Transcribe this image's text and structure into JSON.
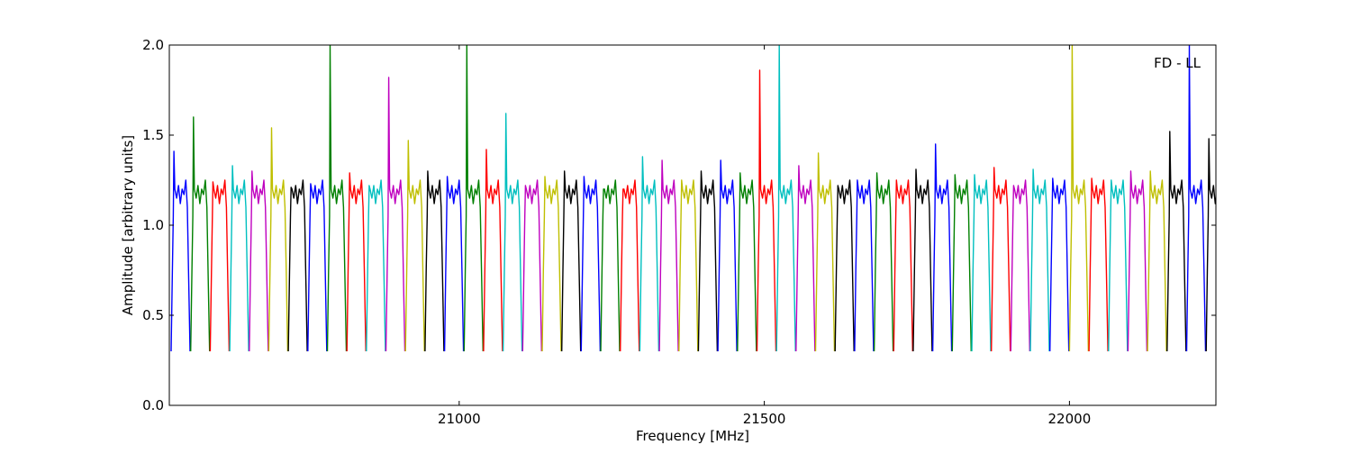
{
  "chart_data": {
    "type": "line",
    "annotation": "FD - LL",
    "xlabel": "Frequency [MHz]",
    "ylabel": "Amplitude [arbitrary units]",
    "xlim": [
      20525,
      22240
    ],
    "ylim": [
      0.0,
      2.0
    ],
    "x_ticks": [
      {
        "value": 21000,
        "label": "21000"
      },
      {
        "value": 21500,
        "label": "21500"
      },
      {
        "value": 22000,
        "label": "22000"
      }
    ],
    "y_ticks": [
      {
        "value": 0.0,
        "label": "0.0"
      },
      {
        "value": 0.5,
        "label": "0.5"
      },
      {
        "value": 1.0,
        "label": "1.0"
      },
      {
        "value": 1.5,
        "label": "1.5"
      },
      {
        "value": 2.0,
        "label": "2.0"
      }
    ],
    "grid": false,
    "legend": "none",
    "color_cycle": [
      "#0000ff",
      "#008000",
      "#ff0000",
      "#00bfbf",
      "#bf00bf",
      "#bfbf00",
      "#000000"
    ],
    "band_template": {
      "span_mhz": 32,
      "x_offsets": [
        0,
        2,
        3.5,
        6,
        9,
        12,
        15,
        18,
        21,
        24,
        26.5,
        28.5,
        31
      ],
      "y_values": [
        0.3,
        0.75,
        1.05,
        1.2,
        1.15,
        1.22,
        1.12,
        1.2,
        1.17,
        1.25,
        1.1,
        0.75,
        0.3
      ]
    },
    "series": [
      {
        "x_start": 20528,
        "color": "#0000ff",
        "peak": 1.41
      },
      {
        "x_start": 20560,
        "color": "#008000",
        "peak": 1.6
      },
      {
        "x_start": 20592,
        "color": "#ff0000",
        "peak": 1.24
      },
      {
        "x_start": 20624,
        "color": "#00bfbf",
        "peak": 1.33
      },
      {
        "x_start": 20656,
        "color": "#bf00bf",
        "peak": 1.3
      },
      {
        "x_start": 20688,
        "color": "#bfbf00",
        "peak": 1.54
      },
      {
        "x_start": 20720,
        "color": "#000000",
        "peak": 1.21
      },
      {
        "x_start": 20752,
        "color": "#0000ff",
        "peak": 1.23
      },
      {
        "x_start": 20784,
        "color": "#008000",
        "peak": 2.0
      },
      {
        "x_start": 20816,
        "color": "#ff0000",
        "peak": 1.29
      },
      {
        "x_start": 20848,
        "color": "#00bfbf",
        "peak": 1.22
      },
      {
        "x_start": 20880,
        "color": "#bf00bf",
        "peak": 1.82
      },
      {
        "x_start": 20912,
        "color": "#bfbf00",
        "peak": 1.47
      },
      {
        "x_start": 20944,
        "color": "#000000",
        "peak": 1.3
      },
      {
        "x_start": 20976,
        "color": "#0000ff",
        "peak": 1.27
      },
      {
        "x_start": 21008,
        "color": "#008000",
        "peak": 2.0
      },
      {
        "x_start": 21040,
        "color": "#ff0000",
        "peak": 1.42
      },
      {
        "x_start": 21072,
        "color": "#00bfbf",
        "peak": 1.62
      },
      {
        "x_start": 21104,
        "color": "#bf00bf",
        "peak": 1.22
      },
      {
        "x_start": 21136,
        "color": "#bfbf00",
        "peak": 1.27
      },
      {
        "x_start": 21168,
        "color": "#000000",
        "peak": 1.3
      },
      {
        "x_start": 21200,
        "color": "#0000ff",
        "peak": 1.27
      },
      {
        "x_start": 21232,
        "color": "#008000",
        "peak": 1.2
      },
      {
        "x_start": 21264,
        "color": "#ff0000",
        "peak": 1.2
      },
      {
        "x_start": 21296,
        "color": "#00bfbf",
        "peak": 1.38
      },
      {
        "x_start": 21328,
        "color": "#bf00bf",
        "peak": 1.36
      },
      {
        "x_start": 21360,
        "color": "#bfbf00",
        "peak": 1.25
      },
      {
        "x_start": 21392,
        "color": "#000000",
        "peak": 1.3
      },
      {
        "x_start": 21424,
        "color": "#0000ff",
        "peak": 1.36
      },
      {
        "x_start": 21456,
        "color": "#008000",
        "peak": 1.29
      },
      {
        "x_start": 21488,
        "color": "#ff0000",
        "peak": 1.86
      },
      {
        "x_start": 21520,
        "color": "#00bfbf",
        "peak": 2.0
      },
      {
        "x_start": 21552,
        "color": "#bf00bf",
        "peak": 1.33
      },
      {
        "x_start": 21584,
        "color": "#bfbf00",
        "peak": 1.4
      },
      {
        "x_start": 21616,
        "color": "#000000",
        "peak": 1.22
      },
      {
        "x_start": 21648,
        "color": "#0000ff",
        "peak": 1.25
      },
      {
        "x_start": 21680,
        "color": "#008000",
        "peak": 1.29
      },
      {
        "x_start": 21712,
        "color": "#ff0000",
        "peak": 1.25
      },
      {
        "x_start": 21744,
        "color": "#000000",
        "peak": 1.31
      },
      {
        "x_start": 21776,
        "color": "#0000ff",
        "peak": 1.45
      },
      {
        "x_start": 21808,
        "color": "#008000",
        "peak": 1.28
      },
      {
        "x_start": 21840,
        "color": "#00bfbf",
        "peak": 1.28
      },
      {
        "x_start": 21872,
        "color": "#ff0000",
        "peak": 1.32
      },
      {
        "x_start": 21904,
        "color": "#bf00bf",
        "peak": 1.22
      },
      {
        "x_start": 21936,
        "color": "#00bfbf",
        "peak": 1.31
      },
      {
        "x_start": 21968,
        "color": "#0000ff",
        "peak": 1.26
      },
      {
        "x_start": 22000,
        "color": "#bfbf00",
        "peak": 2.0
      },
      {
        "x_start": 22032,
        "color": "#ff0000",
        "peak": 1.26
      },
      {
        "x_start": 22064,
        "color": "#00bfbf",
        "peak": 1.25
      },
      {
        "x_start": 22096,
        "color": "#bf00bf",
        "peak": 1.3
      },
      {
        "x_start": 22128,
        "color": "#bfbf00",
        "peak": 1.3
      },
      {
        "x_start": 22160,
        "color": "#000000",
        "peak": 1.52
      },
      {
        "x_start": 22192,
        "color": "#0000ff",
        "peak": 2.0
      },
      {
        "x_start": 22224,
        "color": "#000000",
        "peak": 1.48
      }
    ]
  }
}
